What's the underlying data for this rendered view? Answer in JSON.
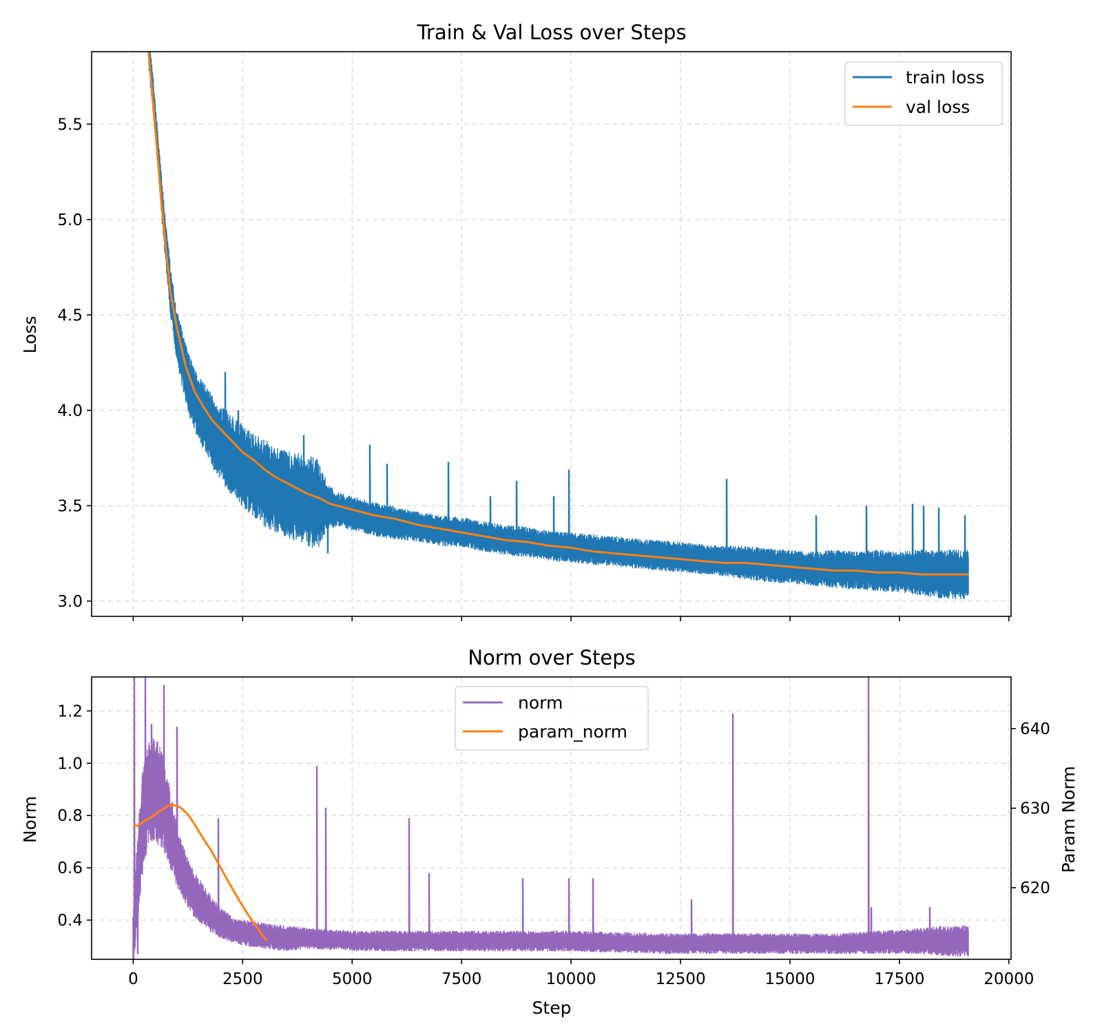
{
  "chart_data": [
    {
      "type": "line",
      "title": "Train & Val Loss over Steps",
      "xlabel": "",
      "ylabel": "Loss",
      "xlim": [
        -950,
        20050
      ],
      "ylim": [
        2.92,
        5.88
      ],
      "xticks": [
        0,
        2500,
        5000,
        7500,
        10000,
        12500,
        15000,
        17500,
        20000
      ],
      "xtick_labels_shown": false,
      "yticks": [
        3.0,
        3.5,
        4.0,
        4.5,
        5.0,
        5.5
      ],
      "ytick_labels": [
        "3.0",
        "3.5",
        "4.0",
        "4.5",
        "5.0",
        "5.5"
      ],
      "grid": true,
      "legend_position": "top-right",
      "series": [
        {
          "name": "train loss",
          "color": "#1f77b4",
          "x": [
            350,
            450,
            550,
            650,
            750,
            850,
            950,
            1100,
            1250,
            1400,
            1600,
            1800,
            2000,
            2250,
            2500,
            2750,
            3000,
            3300,
            3600,
            3900,
            4200,
            4450,
            4700,
            5000,
            5500,
            6000,
            6500,
            7000,
            7500,
            8000,
            8500,
            9000,
            9500,
            10000,
            10500,
            11000,
            11500,
            12000,
            12500,
            13000,
            13500,
            14000,
            14500,
            15000,
            15500,
            16000,
            16500,
            17000,
            17500,
            18000,
            18500,
            19080
          ],
          "center": [
            5.88,
            5.65,
            5.38,
            5.1,
            4.85,
            4.62,
            4.45,
            4.28,
            4.15,
            4.06,
            3.97,
            3.89,
            3.83,
            3.76,
            3.71,
            3.66,
            3.62,
            3.58,
            3.55,
            3.53,
            3.51,
            3.49,
            3.48,
            3.46,
            3.43,
            3.41,
            3.39,
            3.37,
            3.36,
            3.34,
            3.32,
            3.31,
            3.29,
            3.28,
            3.27,
            3.26,
            3.25,
            3.24,
            3.23,
            3.22,
            3.21,
            3.2,
            3.19,
            3.18,
            3.17,
            3.17,
            3.16,
            3.16,
            3.15,
            3.15,
            3.14,
            3.14
          ],
          "noise_amplitude": [
            0.1,
            0.1,
            0.1,
            0.11,
            0.12,
            0.13,
            0.14,
            0.15,
            0.16,
            0.17,
            0.18,
            0.19,
            0.2,
            0.21,
            0.22,
            0.22,
            0.23,
            0.23,
            0.23,
            0.24,
            0.24,
            0.12,
            0.09,
            0.09,
            0.09,
            0.09,
            0.08,
            0.08,
            0.08,
            0.08,
            0.08,
            0.08,
            0.08,
            0.08,
            0.08,
            0.08,
            0.08,
            0.08,
            0.08,
            0.08,
            0.08,
            0.09,
            0.09,
            0.09,
            0.09,
            0.1,
            0.1,
            0.11,
            0.11,
            0.12,
            0.13,
            0.13
          ],
          "spikes": [
            {
              "x": 2100,
              "y": 4.2
            },
            {
              "x": 2400,
              "y": 4.0
            },
            {
              "x": 3900,
              "y": 3.87
            },
            {
              "x": 4450,
              "y": 3.25
            },
            {
              "x": 5400,
              "y": 3.82
            },
            {
              "x": 5800,
              "y": 3.72
            },
            {
              "x": 7200,
              "y": 3.73
            },
            {
              "x": 8150,
              "y": 3.55
            },
            {
              "x": 8750,
              "y": 3.63
            },
            {
              "x": 9600,
              "y": 3.55
            },
            {
              "x": 9950,
              "y": 3.69
            },
            {
              "x": 13550,
              "y": 3.64
            },
            {
              "x": 15600,
              "y": 3.45
            },
            {
              "x": 16750,
              "y": 3.5
            },
            {
              "x": 17800,
              "y": 3.51
            },
            {
              "x": 18050,
              "y": 3.5
            },
            {
              "x": 18400,
              "y": 3.49
            },
            {
              "x": 19000,
              "y": 3.45
            }
          ]
        },
        {
          "name": "val loss",
          "color": "#ff7f0e",
          "x": [
            350,
            450,
            550,
            650,
            750,
            850,
            1000,
            1200,
            1400,
            1600,
            1800,
            2000,
            2250,
            2500,
            2750,
            3000,
            3250,
            3500,
            3750,
            4000,
            4250,
            4500,
            5000,
            5500,
            6000,
            6500,
            7000,
            7500,
            8000,
            8500,
            9000,
            9500,
            10000,
            10500,
            11000,
            11500,
            12000,
            12500,
            13000,
            13500,
            14000,
            14500,
            15000,
            15500,
            16000,
            16500,
            17000,
            17500,
            18000,
            18500,
            19080
          ],
          "y": [
            5.88,
            5.62,
            5.35,
            5.08,
            4.84,
            4.62,
            4.43,
            4.23,
            4.1,
            4.02,
            3.95,
            3.9,
            3.84,
            3.78,
            3.74,
            3.69,
            3.65,
            3.62,
            3.59,
            3.56,
            3.54,
            3.51,
            3.48,
            3.45,
            3.43,
            3.4,
            3.38,
            3.36,
            3.34,
            3.32,
            3.31,
            3.29,
            3.28,
            3.26,
            3.25,
            3.24,
            3.23,
            3.22,
            3.21,
            3.2,
            3.2,
            3.19,
            3.18,
            3.17,
            3.16,
            3.16,
            3.15,
            3.15,
            3.14,
            3.14,
            3.14
          ]
        }
      ]
    },
    {
      "type": "line",
      "title": "Norm over Steps",
      "xlabel": "Step",
      "ylabel": "Norm",
      "y2label": "Param Norm",
      "xlim": [
        -950,
        20050
      ],
      "ylim": [
        0.25,
        1.33
      ],
      "y2lim": [
        611,
        646.5
      ],
      "xticks": [
        0,
        2500,
        5000,
        7500,
        10000,
        12500,
        15000,
        17500,
        20000
      ],
      "xtick_labels": [
        "0",
        "2500",
        "5000",
        "7500",
        "10000",
        "12500",
        "15000",
        "17500",
        "20000"
      ],
      "yticks": [
        0.4,
        0.6,
        0.8,
        1.0,
        1.2
      ],
      "ytick_labels": [
        "0.4",
        "0.6",
        "0.8",
        "1.0",
        "1.2"
      ],
      "y2ticks": [
        620,
        630,
        640
      ],
      "y2tick_labels": [
        "620",
        "630",
        "640"
      ],
      "grid": true,
      "legend_position": "top-center",
      "series": [
        {
          "name": "norm",
          "color": "#9467bd",
          "x": [
            0,
            100,
            200,
            300,
            400,
            500,
            600,
            700,
            800,
            900,
            1000,
            1200,
            1400,
            1600,
            1800,
            2000,
            2300,
            2600,
            3000,
            3500,
            4000,
            5000,
            6000,
            8000,
            10000,
            12000,
            14000,
            16000,
            18000,
            18600,
            19080
          ],
          "center": [
            0.32,
            0.55,
            0.75,
            0.85,
            0.9,
            0.9,
            0.88,
            0.84,
            0.78,
            0.72,
            0.65,
            0.56,
            0.5,
            0.46,
            0.42,
            0.39,
            0.36,
            0.35,
            0.34,
            0.33,
            0.33,
            0.32,
            0.32,
            0.32,
            0.32,
            0.31,
            0.31,
            0.31,
            0.32,
            0.32,
            0.32
          ],
          "noise_amplitude": [
            0.12,
            0.18,
            0.2,
            0.2,
            0.2,
            0.2,
            0.2,
            0.18,
            0.16,
            0.14,
            0.12,
            0.1,
            0.09,
            0.08,
            0.07,
            0.06,
            0.05,
            0.05,
            0.05,
            0.05,
            0.04,
            0.04,
            0.04,
            0.04,
            0.04,
            0.04,
            0.04,
            0.04,
            0.05,
            0.06,
            0.06
          ],
          "spikes": [
            {
              "x": 20,
              "y": 1.33
            },
            {
              "x": 100,
              "y": 0.27
            },
            {
              "x": 280,
              "y": 1.33
            },
            {
              "x": 420,
              "y": 1.15
            },
            {
              "x": 700,
              "y": 1.3
            },
            {
              "x": 1000,
              "y": 1.14
            },
            {
              "x": 1950,
              "y": 0.79
            },
            {
              "x": 4200,
              "y": 0.99
            },
            {
              "x": 4400,
              "y": 0.83
            },
            {
              "x": 6300,
              "y": 0.79
            },
            {
              "x": 6750,
              "y": 0.58
            },
            {
              "x": 8900,
              "y": 0.56
            },
            {
              "x": 9950,
              "y": 0.56
            },
            {
              "x": 10500,
              "y": 0.56
            },
            {
              "x": 12750,
              "y": 0.48
            },
            {
              "x": 13700,
              "y": 1.19
            },
            {
              "x": 16800,
              "y": 1.33
            },
            {
              "x": 16850,
              "y": 0.45
            },
            {
              "x": 18200,
              "y": 0.45
            }
          ]
        },
        {
          "name": "param_norm",
          "color": "#ff7f0e",
          "axis": "right",
          "x": [
            0,
            100,
            200,
            400,
            600,
            800,
            900,
            1000,
            1100,
            1250,
            1400,
            1600,
            1800,
            2000,
            2200,
            2400,
            2600,
            2800,
            3050
          ],
          "y": [
            627.8,
            627.8,
            628.2,
            628.8,
            629.6,
            630.3,
            630.4,
            630.3,
            630.0,
            629.2,
            628.0,
            626.2,
            624.5,
            622.5,
            620.5,
            618.6,
            616.8,
            615.2,
            613.3
          ]
        }
      ]
    }
  ]
}
